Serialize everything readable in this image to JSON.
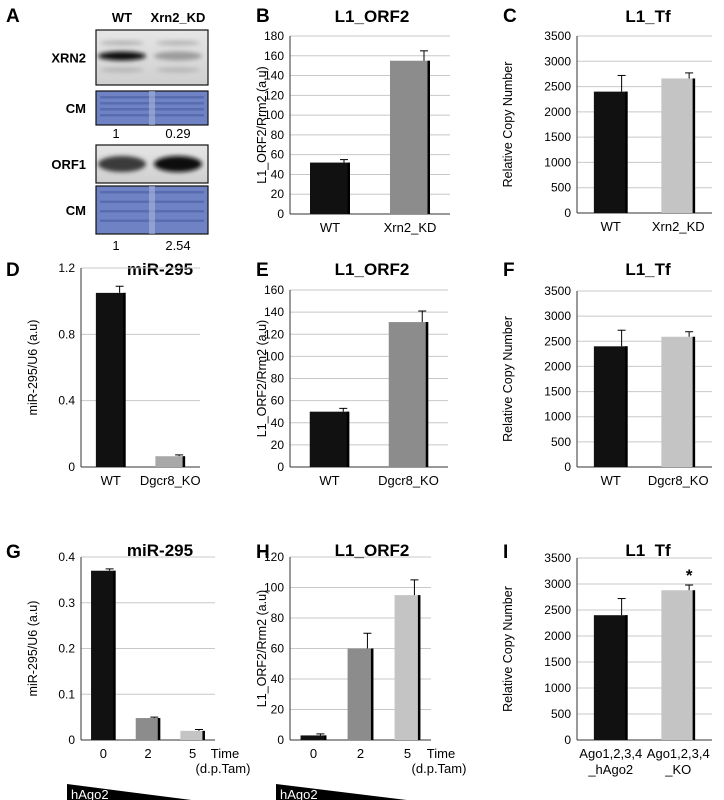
{
  "blot": {
    "label": "A",
    "columns": [
      "WT",
      "Xrn2_KD"
    ],
    "rows": [
      {
        "label": "XRN2",
        "kind": "band",
        "intensity": [
          1.0,
          0.35
        ]
      },
      {
        "label": "CM",
        "kind": "stain"
      },
      {
        "label": "ORF1",
        "kind": "band",
        "intensity": [
          0.8,
          1.0
        ]
      },
      {
        "label": "CM",
        "kind": "stain"
      }
    ],
    "quant": [
      [
        "1",
        "0.29"
      ],
      [
        "1",
        "2.54"
      ]
    ]
  },
  "chart_data": [
    {
      "id": "B",
      "type": "bar",
      "title": "L1_ORF2",
      "ylabel": "L1_ORF2/Rrm2 (a.u)",
      "ylim": [
        0,
        180
      ],
      "yticks": [
        "0",
        "20",
        "40",
        "60",
        "80",
        "100",
        "120",
        "140",
        "160",
        "180"
      ],
      "categories": [
        "WT",
        "Xrn2_KD"
      ],
      "values": [
        52,
        155
      ],
      "errors": [
        3,
        10
      ],
      "colors": [
        "#111111",
        "#8c8c8c"
      ],
      "grid": true
    },
    {
      "id": "C",
      "type": "bar",
      "title": "L1_Tf",
      "ylabel": "Relative Copy Number",
      "ylim": [
        0,
        3500
      ],
      "yticks": [
        "0",
        "500",
        "1000",
        "1500",
        "2000",
        "2500",
        "3000",
        "3500"
      ],
      "categories": [
        "WT",
        "Xrn2_KD"
      ],
      "values": [
        2400,
        2660
      ],
      "errors": [
        320,
        110
      ],
      "colors": [
        "#111111",
        "#c4c4c4"
      ],
      "grid": true
    },
    {
      "id": "D",
      "type": "bar",
      "title": "miR-295",
      "ylabel": "miR-295/U6 (a.u)",
      "ylim": [
        0,
        1.2
      ],
      "yticks": [
        "0",
        "0.4",
        "0.8",
        "1.2"
      ],
      "categories": [
        "WT",
        "Dgcr8_KO"
      ],
      "values": [
        1.05,
        0.065
      ],
      "errors": [
        0.04,
        0.008
      ],
      "colors": [
        "#111111",
        "#a8a8a8"
      ],
      "grid": true
    },
    {
      "id": "E",
      "type": "bar",
      "title": "L1_ORF2",
      "ylabel": "L1_ORF2/Rrm2 (a.u)",
      "ylim": [
        0,
        160
      ],
      "yticks": [
        "0",
        "20",
        "40",
        "60",
        "80",
        "100",
        "120",
        "140",
        "160"
      ],
      "categories": [
        "WT",
        "Dgcr8_KO"
      ],
      "values": [
        50,
        131
      ],
      "errors": [
        3,
        10
      ],
      "colors": [
        "#111111",
        "#8c8c8c"
      ],
      "grid": true
    },
    {
      "id": "F",
      "type": "bar",
      "title": "L1_Tf",
      "ylabel": "Relative Copy Number",
      "ylim": [
        0,
        3500
      ],
      "yticks": [
        "0",
        "500",
        "1000",
        "1500",
        "2000",
        "2500",
        "3000",
        "3500"
      ],
      "categories": [
        "WT",
        "Dgcr8_KO"
      ],
      "values": [
        2400,
        2590
      ],
      "errors": [
        320,
        100
      ],
      "colors": [
        "#111111",
        "#c4c4c4"
      ],
      "grid": true
    },
    {
      "id": "G",
      "type": "bar",
      "title": "miR-295",
      "ylabel": "miR-295/U6 (a.u)",
      "ylim": [
        0,
        0.4
      ],
      "yticks": [
        "0",
        "0.1",
        "0.2",
        "0.3",
        "0.4"
      ],
      "categories": [
        "0",
        "2",
        "5"
      ],
      "values": [
        0.37,
        0.048,
        0.02
      ],
      "errors": [
        0.004,
        0.002,
        0.003
      ],
      "colors": [
        "#111111",
        "#8c8c8c",
        "#c4c4c4"
      ],
      "grid": true,
      "time_label": [
        "Time",
        "(d.p.Tam)"
      ],
      "wedge_label": "hAgo2"
    },
    {
      "id": "H",
      "type": "bar",
      "title": "L1_ORF2",
      "ylabel": "L1_ORF2/Rrm2 (a.u)",
      "ylim": [
        0,
        120
      ],
      "yticks": [
        "0",
        "20",
        "40",
        "60",
        "80",
        "100",
        "120"
      ],
      "categories": [
        "0",
        "2",
        "5"
      ],
      "values": [
        3,
        60,
        95
      ],
      "errors": [
        1,
        10,
        10
      ],
      "colors": [
        "#111111",
        "#8c8c8c",
        "#c4c4c4"
      ],
      "grid": true,
      "time_label": [
        "Time",
        "(d.p.Tam)"
      ],
      "wedge_label": "hAgo2"
    },
    {
      "id": "I",
      "type": "bar",
      "title": "L1_Tf",
      "ylabel": "Relative Copy Number",
      "ylim": [
        0,
        3500
      ],
      "yticks": [
        "0",
        "500",
        "1000",
        "1500",
        "2000",
        "2500",
        "3000",
        "3500"
      ],
      "categories": [
        [
          "Ago1,2,3,4",
          "_hAgo2"
        ],
        [
          "Ago1,2,3,4",
          "_KO"
        ]
      ],
      "values": [
        2400,
        2880
      ],
      "errors": [
        320,
        100
      ],
      "colors": [
        "#111111",
        "#c4c4c4"
      ],
      "grid": true,
      "annotations": [
        "",
        "*"
      ]
    }
  ]
}
